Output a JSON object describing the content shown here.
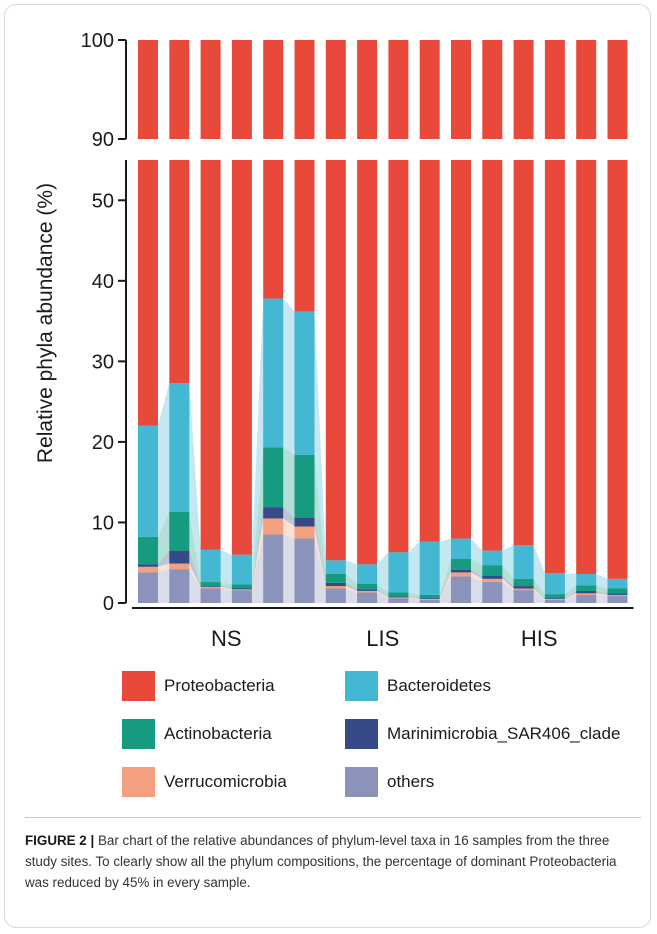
{
  "chart_data": {
    "type": "bar",
    "stacked": true,
    "ylabel": "Relative phyla abundance (%)",
    "y_axis_lower": {
      "range": [
        0,
        55
      ],
      "ticks": [
        "0",
        "10",
        "20",
        "30",
        "40",
        "50"
      ]
    },
    "y_axis_upper": {
      "range": [
        90,
        100
      ],
      "ticks": [
        "90",
        "100"
      ]
    },
    "axis_break": true,
    "groups": [
      {
        "label": "NS",
        "samples": 6
      },
      {
        "label": "LIS",
        "samples": 4
      },
      {
        "label": "HIS",
        "samples": 6
      }
    ],
    "series": [
      {
        "name": "others",
        "color": "#8b93ba",
        "values": [
          3.8,
          4.2,
          1.8,
          1.6,
          8.5,
          8.0,
          1.8,
          1.3,
          0.6,
          0.4,
          3.3,
          2.6,
          1.6,
          0.4,
          1.0,
          0.9
        ]
      },
      {
        "name": "Verrucomicrobia",
        "color": "#f2a07f",
        "values": [
          0.7,
          0.7,
          0.2,
          0.1,
          2.0,
          1.5,
          0.3,
          0.2,
          0.1,
          0.1,
          0.5,
          0.4,
          0.2,
          0.1,
          0.2,
          0.1
        ]
      },
      {
        "name": "Marinimicrobia_SAR406_clade",
        "color": "#354a86",
        "values": [
          0.3,
          1.6,
          0.1,
          0.1,
          1.4,
          1.1,
          0.4,
          0.2,
          0.1,
          0.1,
          0.3,
          0.4,
          0.3,
          0.1,
          0.3,
          0.2
        ]
      },
      {
        "name": "Actinobacteria",
        "color": "#169b80",
        "values": [
          3.4,
          4.8,
          0.5,
          0.5,
          7.4,
          7.8,
          1.1,
          0.7,
          0.5,
          0.4,
          1.4,
          1.3,
          0.9,
          0.5,
          0.7,
          0.6
        ]
      },
      {
        "name": "Bacteroidetes",
        "color": "#44b7d2",
        "values": [
          13.8,
          16.0,
          4.0,
          3.7,
          18.5,
          17.8,
          1.7,
          2.4,
          5.0,
          6.6,
          2.5,
          1.8,
          4.2,
          2.6,
          1.4,
          1.2
        ]
      },
      {
        "name": "Proteobacteria",
        "color": "#e8493a",
        "values": [
          78.0,
          72.7,
          93.4,
          94.0,
          62.2,
          63.8,
          94.7,
          95.2,
          93.7,
          92.4,
          92.0,
          93.5,
          92.8,
          96.3,
          96.4,
          97.0
        ]
      }
    ],
    "legend_placement": "bottom"
  },
  "legend": {
    "items": [
      {
        "name": "Proteobacteria",
        "color": "#e8493a"
      },
      {
        "name": "Bacteroidetes",
        "color": "#44b7d2"
      },
      {
        "name": "Actinobacteria",
        "color": "#169b80"
      },
      {
        "name": "Marinimicrobia_SAR406_clade",
        "color": "#354a86"
      },
      {
        "name": "Verrucomicrobia",
        "color": "#f2a07f"
      },
      {
        "name": "others",
        "color": "#8b93ba"
      }
    ]
  },
  "caption": {
    "label": "FIGURE 2 |",
    "text": "Bar chart of the relative abundances of phylum-level taxa in 16 samples from the three study sites. To clearly show all the phylum compositions, the percentage of dominant Proteobacteria was reduced by 45% in every sample."
  }
}
